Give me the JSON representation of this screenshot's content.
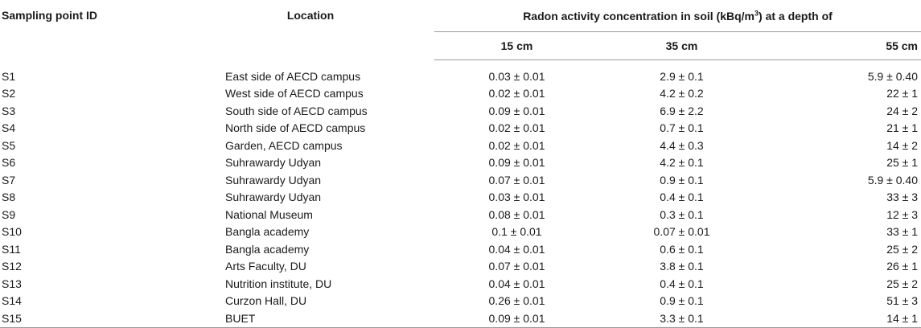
{
  "header": {
    "sampling_point_id": "Sampling point ID",
    "location": "Location",
    "span_prefix": "Radon activity concentration in soil (kBq/m",
    "span_superscript": "3",
    "span_suffix": ") at a depth of",
    "depths": [
      "15 cm",
      "35 cm",
      "55 cm"
    ]
  },
  "rows": [
    {
      "id": "S1",
      "location": "East side of AECD campus",
      "d15": "0.03 ± 0.01",
      "d35": "2.9 ± 0.1",
      "d55": "5.9 ± 0.40"
    },
    {
      "id": "S2",
      "location": "West side of AECD campus",
      "d15": "0.02 ± 0.01",
      "d35": "4.2 ± 0.2",
      "d55": "22 ± 1"
    },
    {
      "id": "S3",
      "location": "South side of AECD campus",
      "d15": "0.09 ± 0.01",
      "d35": "6.9 ± 2.2",
      "d55": "24 ± 2"
    },
    {
      "id": "S4",
      "location": "North side of AECD campus",
      "d15": "0.02 ± 0.01",
      "d35": "0.7 ± 0.1",
      "d55": "21 ± 1"
    },
    {
      "id": "S5",
      "location": "Garden, AECD campus",
      "d15": "0.02 ± 0.01",
      "d35": "4.4 ± 0.3",
      "d55": "14 ± 2"
    },
    {
      "id": "S6",
      "location": "Suhrawardy Udyan",
      "d15": "0.09 ± 0.01",
      "d35": "4.2 ± 0.1",
      "d55": "25 ± 1"
    },
    {
      "id": "S7",
      "location": "Suhrawardy Udyan",
      "d15": "0.07 ± 0.01",
      "d35": "0.9 ± 0.1",
      "d55": "5.9 ± 0.40"
    },
    {
      "id": "S8",
      "location": "Suhrawardy Udyan",
      "d15": "0.03 ± 0.01",
      "d35": "0.4 ± 0.1",
      "d55": "33 ± 3"
    },
    {
      "id": "S9",
      "location": "National Museum",
      "d15": "0.08 ± 0.01",
      "d35": "0.3 ± 0.1",
      "d55": "12 ± 3"
    },
    {
      "id": "S10",
      "location": "Bangla academy",
      "d15": "0.1 ± 0.01",
      "d35": "0.07 ± 0.01",
      "d55": "33 ± 1"
    },
    {
      "id": "S11",
      "location": "Bangla academy",
      "d15": "0.04 ± 0.01",
      "d35": "0.6 ± 0.1",
      "d55": "25 ± 2"
    },
    {
      "id": "S12",
      "location": "Arts Faculty, DU",
      "d15": "0.07 ± 0.01",
      "d35": "3.8 ± 0.1",
      "d55": "26 ± 1"
    },
    {
      "id": "S13",
      "location": "Nutrition institute, DU",
      "d15": "0.04 ± 0.01",
      "d35": "0.4 ± 0.1",
      "d55": "25 ± 2"
    },
    {
      "id": "S14",
      "location": "Curzon Hall, DU",
      "d15": "0.26 ± 0.01",
      "d35": "0.9 ± 0.1",
      "d55": "51 ± 3"
    },
    {
      "id": "S15",
      "location": "BUET",
      "d15": "0.09 ± 0.01",
      "d35": "3.3 ± 0.1",
      "d55": "14 ± 1"
    }
  ]
}
